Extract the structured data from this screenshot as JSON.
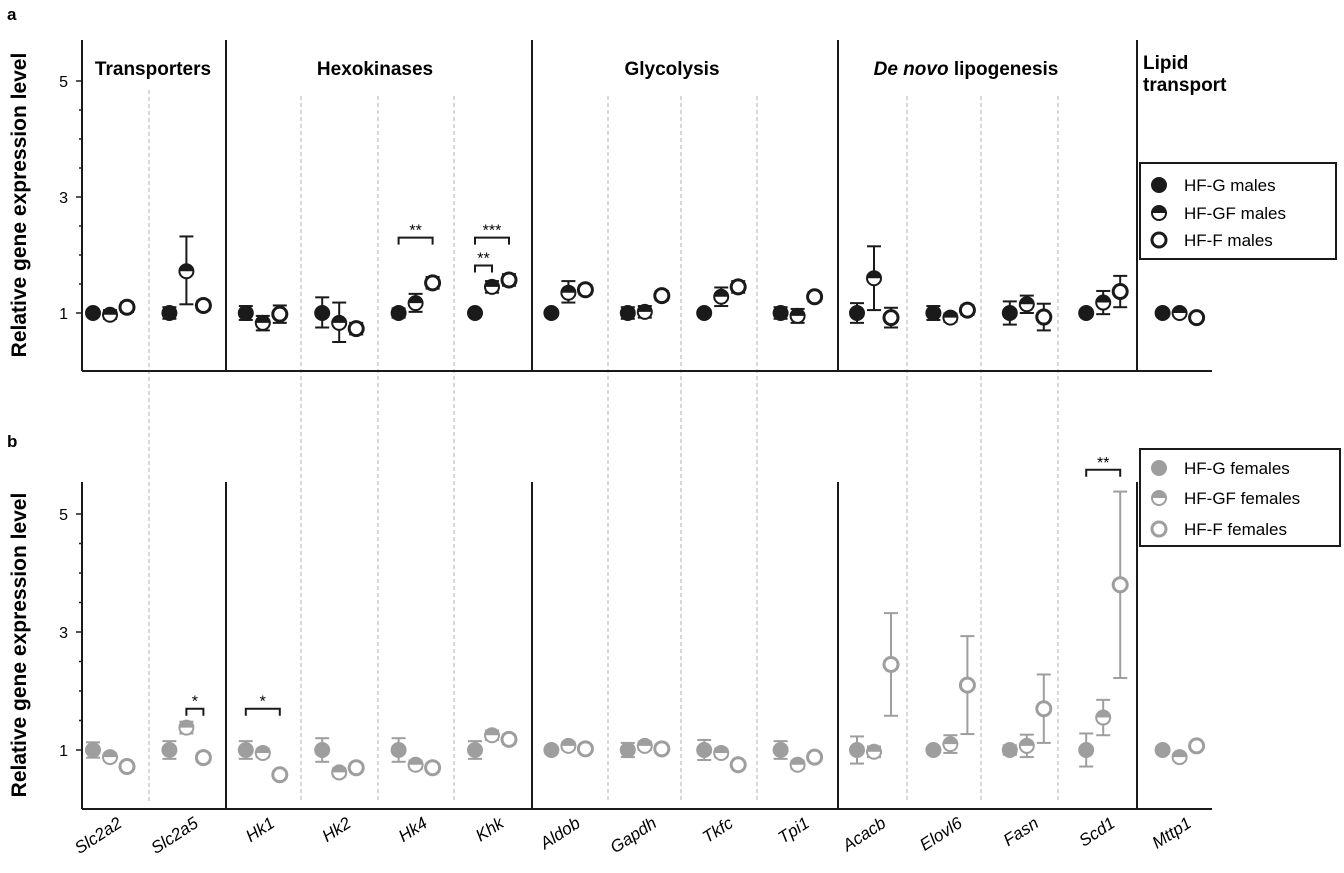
{
  "chart_data": [
    {
      "type": "scatter",
      "panel": "a",
      "ylabel": "Relative gene expression level",
      "ylim": [
        0,
        5.5
      ],
      "yticks": [
        1,
        3,
        5
      ],
      "categories": [
        "Slc2a2",
        "Slc2a5",
        "Hk1",
        "Hk2",
        "Hk4",
        "Khk",
        "Aldob",
        "Gapdh",
        "Tkfc",
        "Tpi1",
        "Acacb",
        "Elovl6",
        "Fasn",
        "Scd1",
        "Mttp1"
      ],
      "groups": [
        {
          "name": "Transporters",
          "genes": [
            "Slc2a2",
            "Slc2a5"
          ]
        },
        {
          "name": "Hexokinases",
          "genes": [
            "Hk1",
            "Hk2",
            "Hk4",
            "Khk"
          ]
        },
        {
          "name": "Glycolysis",
          "genes": [
            "Aldob",
            "Gapdh",
            "Tkfc",
            "Tpi1"
          ]
        },
        {
          "name_italic": "De novo",
          "name": " lipogenesis",
          "genes": [
            "Acacb",
            "Elovl6",
            "Fasn",
            "Scd1"
          ]
        },
        {
          "name_line1": "Lipid",
          "name_line2": "transport",
          "genes": [
            "Mttp1"
          ]
        }
      ],
      "series": [
        {
          "name": "HF-G males",
          "marker": "filled",
          "color": "#1a1a1a",
          "values": [
            1.0,
            1.0,
            1.0,
            1.0,
            1.0,
            1.0,
            1.0,
            1.0,
            1.0,
            1.0,
            1.0,
            1.0,
            1.0,
            1.0,
            1.0
          ],
          "err_low": [
            0.95,
            0.9,
            0.88,
            0.75,
            0.92,
            0.95,
            0.95,
            0.9,
            0.95,
            0.9,
            0.83,
            0.88,
            0.8,
            0.95,
            0.95
          ],
          "err_high": [
            1.05,
            1.1,
            1.12,
            1.27,
            1.08,
            1.05,
            1.05,
            1.1,
            1.05,
            1.1,
            1.17,
            1.12,
            1.2,
            1.05,
            1.05
          ]
        },
        {
          "name": "HF-GF males",
          "marker": "half",
          "color": "#1a1a1a",
          "values": [
            0.97,
            1.72,
            0.83,
            0.83,
            1.17,
            1.45,
            1.35,
            1.02,
            1.28,
            0.95,
            1.6,
            0.92,
            1.15,
            1.18,
            1.0
          ],
          "err_low": [
            0.9,
            1.15,
            0.7,
            0.5,
            1.02,
            1.35,
            1.18,
            0.92,
            1.12,
            0.83,
            1.05,
            0.85,
            1.0,
            0.98,
            0.95
          ],
          "err_high": [
            1.05,
            2.32,
            0.95,
            1.18,
            1.33,
            1.55,
            1.55,
            1.12,
            1.44,
            1.07,
            2.15,
            0.99,
            1.3,
            1.38,
            1.05
          ]
        },
        {
          "name": "HF-F males",
          "marker": "open",
          "color": "#1a1a1a",
          "values": [
            1.1,
            1.13,
            0.98,
            0.73,
            1.52,
            1.57,
            1.4,
            1.3,
            1.45,
            1.28,
            0.92,
            1.05,
            0.93,
            1.37,
            0.92
          ],
          "err_low": [
            1.02,
            1.05,
            0.83,
            0.63,
            1.42,
            1.47,
            1.32,
            1.22,
            1.35,
            1.2,
            0.75,
            0.97,
            0.7,
            1.1,
            0.86
          ],
          "err_high": [
            1.18,
            1.21,
            1.13,
            0.83,
            1.62,
            1.67,
            1.48,
            1.38,
            1.55,
            1.36,
            1.09,
            1.13,
            1.16,
            1.64,
            0.98
          ]
        }
      ],
      "significance": [
        {
          "gene": "Hk4",
          "from": "HF-G males",
          "to": "HF-F males",
          "y": 2.3,
          "label": "**"
        },
        {
          "gene": "Khk",
          "from": "HF-G males",
          "to": "HF-GF males",
          "y": 1.82,
          "label": "**"
        },
        {
          "gene": "Khk",
          "from": "HF-G males",
          "to": "HF-F males",
          "y": 2.3,
          "label": "***"
        }
      ],
      "legend": {
        "placement": "right",
        "entries": [
          "HF-G males",
          "HF-GF males",
          "HF-F males"
        ]
      }
    },
    {
      "type": "scatter",
      "panel": "b",
      "ylabel": "Relative gene expression level",
      "ylim": [
        0,
        5.5
      ],
      "yticks": [
        1,
        3,
        5
      ],
      "categories": [
        "Slc2a2",
        "Slc2a5",
        "Hk1",
        "Hk2",
        "Hk4",
        "Khk",
        "Aldob",
        "Gapdh",
        "Tkfc",
        "Tpi1",
        "Acacb",
        "Elovl6",
        "Fasn",
        "Scd1",
        "Mttp1"
      ],
      "series": [
        {
          "name": "HF-G females",
          "marker": "filled",
          "color": "#9e9e9e",
          "values": [
            1.0,
            1.0,
            1.0,
            1.0,
            1.0,
            1.0,
            1.0,
            1.0,
            1.0,
            1.0,
            1.0,
            1.0,
            1.0,
            1.0,
            1.0
          ],
          "err_low": [
            0.87,
            0.85,
            0.85,
            0.8,
            0.8,
            0.85,
            0.95,
            0.88,
            0.83,
            0.85,
            0.77,
            0.95,
            0.92,
            0.72,
            0.95
          ],
          "err_high": [
            1.13,
            1.15,
            1.15,
            1.2,
            1.2,
            1.15,
            1.05,
            1.12,
            1.17,
            1.15,
            1.23,
            1.05,
            1.08,
            1.28,
            1.05
          ]
        },
        {
          "name": "HF-GF females",
          "marker": "half",
          "color": "#9e9e9e",
          "values": [
            0.88,
            1.38,
            0.95,
            0.62,
            0.75,
            1.25,
            1.07,
            1.07,
            0.95,
            0.75,
            0.97,
            1.1,
            1.07,
            1.55,
            0.88
          ],
          "err_low": [
            0.82,
            1.28,
            0.88,
            0.55,
            0.68,
            1.17,
            1.01,
            1.0,
            0.88,
            0.68,
            0.88,
            0.95,
            0.88,
            1.25,
            0.82
          ],
          "err_high": [
            0.94,
            1.48,
            1.02,
            0.69,
            0.82,
            1.33,
            1.13,
            1.14,
            1.02,
            0.82,
            1.06,
            1.25,
            1.26,
            1.85,
            0.94
          ]
        },
        {
          "name": "HF-F females",
          "marker": "open",
          "color": "#9e9e9e",
          "values": [
            0.72,
            0.87,
            0.58,
            0.7,
            0.7,
            1.18,
            1.02,
            1.02,
            0.75,
            0.88,
            2.45,
            2.1,
            1.7,
            3.8,
            1.07
          ],
          "err_low": [
            0.66,
            0.79,
            0.52,
            0.63,
            0.63,
            1.1,
            0.96,
            0.96,
            0.69,
            0.82,
            1.58,
            1.27,
            1.12,
            2.22,
            1.01
          ],
          "err_high": [
            0.78,
            0.95,
            0.64,
            0.77,
            0.77,
            1.26,
            1.08,
            1.08,
            0.81,
            0.94,
            3.32,
            2.93,
            2.28,
            5.38,
            1.13
          ]
        }
      ],
      "significance": [
        {
          "gene": "Slc2a5",
          "from": "HF-GF females",
          "to": "HF-F females",
          "y": 1.7,
          "label": "*"
        },
        {
          "gene": "Hk1",
          "from": "HF-G females",
          "to": "HF-F females",
          "y": 1.7,
          "label": "*"
        },
        {
          "gene": "Scd1",
          "from": "HF-G females",
          "to": "HF-F females",
          "y": 5.75,
          "label": "**"
        }
      ],
      "legend": {
        "placement": "top-right",
        "entries": [
          "HF-G females",
          "HF-GF females",
          "HF-F females"
        ]
      }
    }
  ]
}
